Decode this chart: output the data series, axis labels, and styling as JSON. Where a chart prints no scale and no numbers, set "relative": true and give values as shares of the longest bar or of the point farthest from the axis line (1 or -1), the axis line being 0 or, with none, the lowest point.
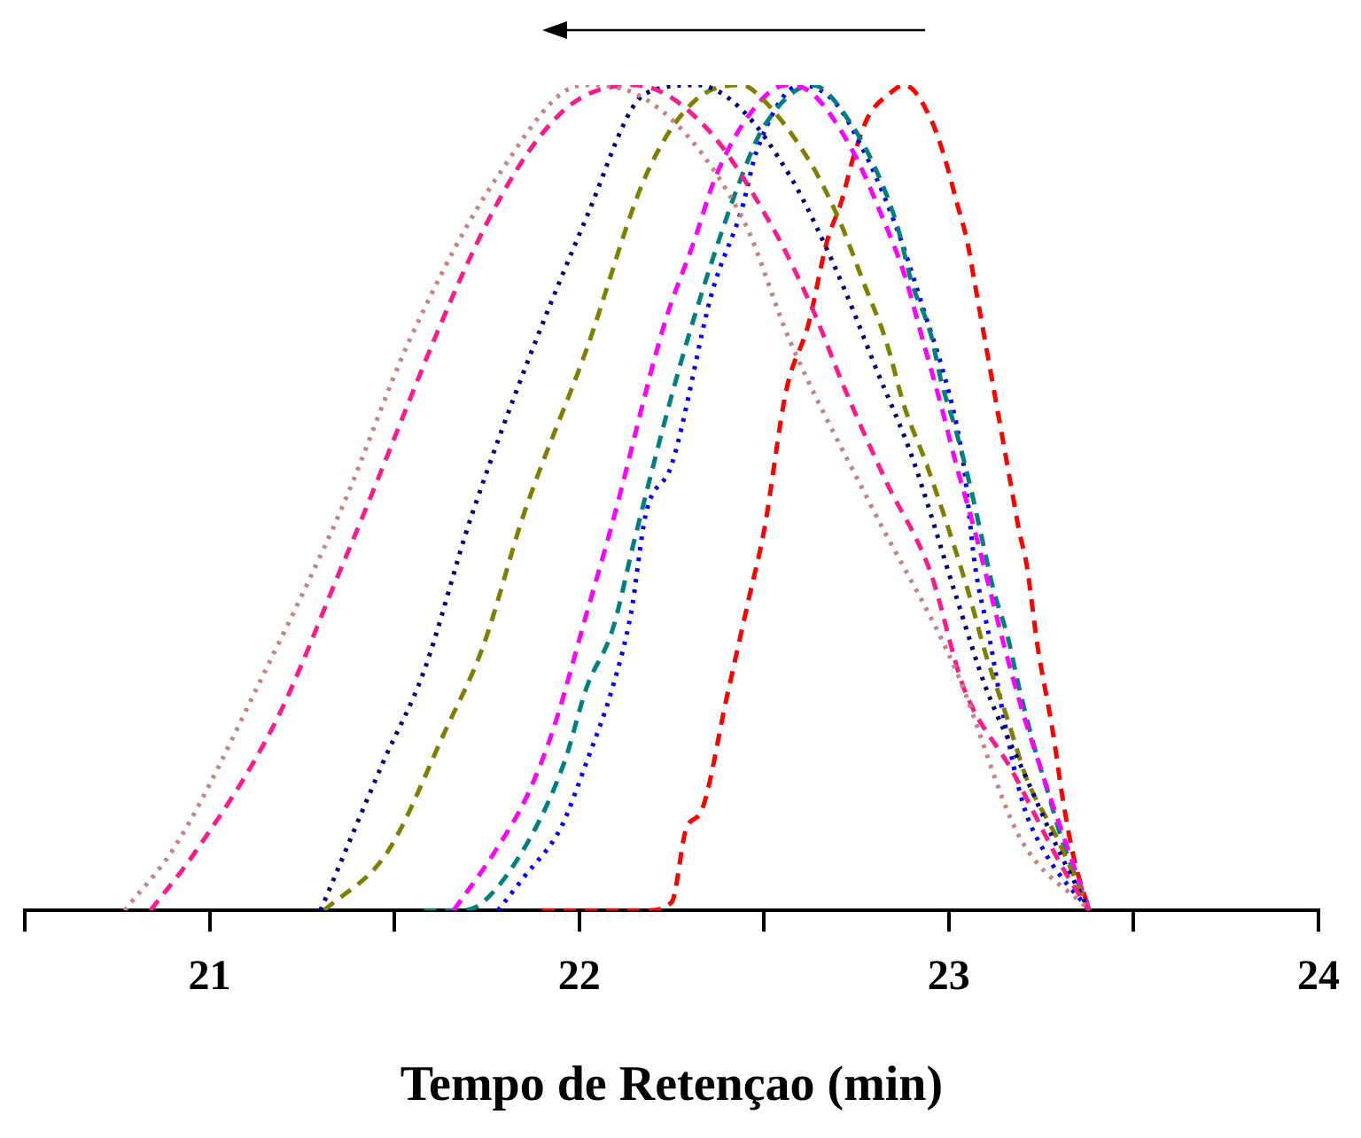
{
  "chart_data": {
    "type": "line",
    "relative": true,
    "xlabel": "Tempo de Retençao (min)",
    "xlim": [
      20.5,
      24
    ],
    "xticks": [
      {
        "value": 20.5,
        "label": null
      },
      21,
      {
        "value": 21.5,
        "label": null
      },
      22,
      {
        "value": 22.5,
        "label": null
      },
      23,
      {
        "value": 23.5,
        "label": null
      },
      24
    ],
    "grid": false,
    "legend": false,
    "marker": "none",
    "tick_labels": "x",
    "series": [
      {
        "color": "#c88080",
        "line_style": "dotted",
        "x": [
          20.77,
          20.91,
          21.15,
          21.36,
          21.54,
          21.78,
          22.01,
          22.15,
          22.44,
          22.57,
          22.79,
          23.02,
          23.19,
          23.38
        ],
        "values": [
          0,
          0.08,
          0.29,
          0.49,
          0.69,
          0.89,
          1,
          0.99,
          0.84,
          0.69,
          0.49,
          0.29,
          0.09,
          0
        ]
      },
      {
        "color": "#ff1a8c",
        "line_style": "dashed",
        "x": [
          20.84,
          20.96,
          21.18,
          21.37,
          21.77,
          21.96,
          22.15,
          22.34,
          22.52,
          22.63,
          22.72,
          22.83,
          22.95,
          23.04,
          23.17,
          23.31,
          23.38
        ],
        "values": [
          0,
          0.07,
          0.23,
          0.43,
          0.85,
          0.97,
          1,
          0.95,
          0.83,
          0.73,
          0.63,
          0.52,
          0.41,
          0.27,
          0.17,
          0.05,
          0
        ]
      },
      {
        "color": "#000080",
        "line_style": "dotted",
        "x": [
          21.3,
          21.47,
          21.58,
          21.71,
          22.02,
          22.18,
          22.32,
          22.44,
          22.57,
          22.64,
          22.72,
          22.8,
          22.9,
          23.02,
          23.1,
          23.2,
          23.3,
          23.38
        ],
        "values": [
          0,
          0.18,
          0.29,
          0.48,
          0.84,
          0.99,
          1,
          0.97,
          0.89,
          0.83,
          0.75,
          0.66,
          0.55,
          0.38,
          0.27,
          0.17,
          0.07,
          0
        ]
      },
      {
        "color": "#808000",
        "line_style": "dashed",
        "x": [
          21.31,
          21.48,
          21.64,
          21.74,
          21.85,
          22.02,
          22.18,
          22.31,
          22.44,
          22.48,
          22.62,
          22.7,
          22.77,
          22.83,
          22.88,
          22.94,
          23.05,
          23.1,
          23.16,
          23.21,
          23.29,
          23.38
        ],
        "values": [
          0,
          0.07,
          0.22,
          0.32,
          0.48,
          0.68,
          0.89,
          0.98,
          1,
          0.99,
          0.91,
          0.84,
          0.76,
          0.69,
          0.61,
          0.54,
          0.39,
          0.31,
          0.23,
          0.16,
          0.09,
          0
        ]
      },
      {
        "color": "#ff00ff",
        "line_style": "dashed",
        "x": [
          21.66,
          21.77,
          21.86,
          21.93,
          22.02,
          22.09,
          22.23,
          22.31,
          22.37,
          22.47,
          22.56,
          22.63,
          22.74,
          22.82,
          22.88,
          22.93,
          22.98,
          23.02,
          23.07,
          23.11,
          23.15,
          23.2,
          23.25,
          23.31,
          23.38
        ],
        "values": [
          0,
          0.07,
          0.14,
          0.22,
          0.36,
          0.47,
          0.71,
          0.81,
          0.89,
          0.97,
          1,
          0.99,
          0.92,
          0.84,
          0.77,
          0.69,
          0.61,
          0.54,
          0.46,
          0.39,
          0.32,
          0.24,
          0.17,
          0.09,
          0
        ]
      },
      {
        "color": "#008080",
        "line_style": "dashed",
        "x": [
          21.58,
          21.68,
          21.74,
          21.87,
          21.96,
          22.02,
          22.09,
          22.15,
          22.26,
          22.34,
          22.44,
          22.5,
          22.63,
          22.74,
          22.81,
          22.86,
          22.9,
          22.95,
          22.98,
          23.02,
          23.06,
          23.09,
          23.12,
          23.16,
          23.19,
          23.23,
          23.27,
          23.31,
          23.38
        ],
        "values": [
          0,
          0,
          0.01,
          0.09,
          0.18,
          0.27,
          0.34,
          0.45,
          0.64,
          0.76,
          0.89,
          0.95,
          1,
          0.95,
          0.89,
          0.83,
          0.76,
          0.7,
          0.64,
          0.58,
          0.51,
          0.45,
          0.39,
          0.33,
          0.27,
          0.2,
          0.14,
          0.08,
          0
        ]
      },
      {
        "color": "#0000ff",
        "line_style": "dotted",
        "x": [
          21.78,
          21.85,
          21.95,
          22.02,
          22.09,
          22.14,
          22.18,
          22.25,
          22.36,
          22.44,
          22.48,
          22.6,
          22.69,
          22.77,
          22.83,
          22.88,
          22.93,
          22.98,
          23.02,
          23.04,
          23.07,
          23.11,
          23.15,
          23.2,
          23.26,
          23.38
        ],
        "values": [
          0,
          0.04,
          0.1,
          0.18,
          0.27,
          0.36,
          0.48,
          0.54,
          0.75,
          0.85,
          0.92,
          1,
          0.98,
          0.92,
          0.86,
          0.8,
          0.73,
          0.66,
          0.59,
          0.54,
          0.42,
          0.33,
          0.23,
          0.13,
          0.07,
          0
        ]
      },
      {
        "color": "#ff0000",
        "line_style": "dashed",
        "x": [
          21.9,
          22.18,
          22.25,
          22.29,
          22.33,
          22.4,
          22.46,
          22.5,
          22.56,
          22.62,
          22.67,
          22.71,
          22.74,
          22.78,
          22.84,
          22.88,
          22.95,
          22.99,
          23.02,
          23.05,
          23.07,
          23.09,
          23.11,
          23.13,
          23.15,
          23.17,
          23.19,
          23.21,
          23.24,
          23.28,
          23.31,
          23.34,
          23.38
        ],
        "values": [
          0,
          0,
          0.01,
          0.1,
          0.12,
          0.26,
          0.38,
          0.46,
          0.63,
          0.71,
          0.81,
          0.86,
          0.91,
          0.96,
          0.99,
          1,
          0.96,
          0.91,
          0.86,
          0.81,
          0.76,
          0.71,
          0.66,
          0.61,
          0.56,
          0.51,
          0.46,
          0.42,
          0.32,
          0.22,
          0.13,
          0.06,
          0
        ]
      }
    ]
  }
}
